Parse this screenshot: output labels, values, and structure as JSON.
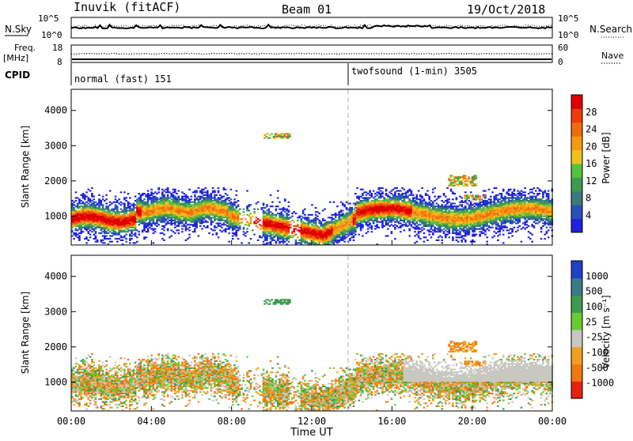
{
  "header": {
    "station": "Inuvik (fitACF)",
    "beam": "Beam 01",
    "date": "19/Oct/2018"
  },
  "top_strip": {
    "nsky_label": "N.Sky",
    "nsearch_label": "N.Search",
    "left_ticks": [
      "10^5",
      "10^0"
    ],
    "right_ticks": [
      "10^5",
      "10^0"
    ]
  },
  "freq_strip": {
    "freq_label": "Freq.",
    "unit_label": "[MHz]",
    "nave_label": "Nave",
    "left_ticks": [
      "18",
      "8"
    ],
    "right_ticks": [
      "60",
      "0"
    ]
  },
  "cpid": {
    "label": "CPID",
    "segment1": "normal (fast) 151",
    "segment2": "twofsound (1-min) 3505"
  },
  "chart_data": [
    {
      "type": "heatmap",
      "name": "power",
      "ylabel": "Slant Range [km]",
      "yticks": [
        "1000",
        "2000",
        "3000",
        "4000"
      ],
      "ylim": [
        180,
        4600
      ],
      "xlim": [
        0,
        24
      ],
      "colorbar": {
        "label": "Power [dB]",
        "ticks": [
          "4",
          "8",
          "12",
          "16",
          "20",
          "24",
          "28"
        ],
        "colors": [
          "#2020e0",
          "#2850b8",
          "#3a7a7a",
          "#3e9a50",
          "#58c040",
          "#f0c020",
          "#f39a10",
          "#f06a10",
          "#ee3a0a",
          "#e00000"
        ]
      }
    },
    {
      "type": "heatmap",
      "name": "velocity",
      "ylabel": "Slant Range [km]",
      "yticks": [
        "1000",
        "2000",
        "3000",
        "4000"
      ],
      "ylim": [
        180,
        4600
      ],
      "xlim": [
        0,
        24
      ],
      "xticks": [
        "00:00",
        "04:00",
        "08:00",
        "12:00",
        "16:00",
        "20:00",
        "00:00"
      ],
      "xlabel": "Time UT",
      "colorbar": {
        "label": "Velocity [m s⁻¹]",
        "ticks": [
          "1000",
          "500",
          "100",
          "25",
          "-25",
          "-100",
          "-500",
          "-1000"
        ],
        "colors": [
          "#2040c8",
          "#3a7a8a",
          "#3e9a50",
          "#66cc33",
          "#c8c8c0",
          "#f0a020",
          "#f07810",
          "#e82010"
        ]
      }
    }
  ]
}
